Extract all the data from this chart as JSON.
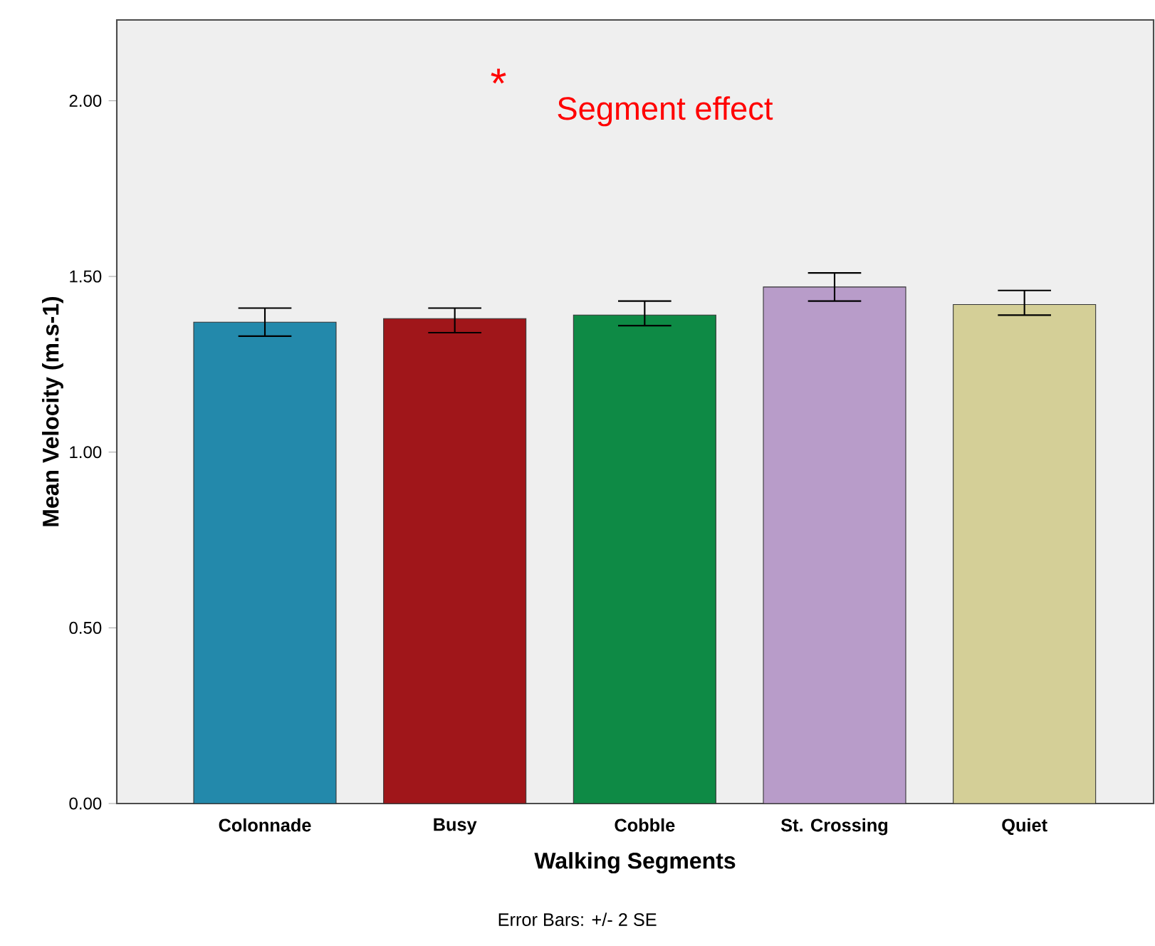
{
  "chart_data": {
    "type": "bar",
    "xlabel": "Walking Segments",
    "ylabel": "Mean Velocity (m.s-1)",
    "categories": [
      "Colonnade",
      "Busy",
      "Cobble",
      "St. Crossing",
      "Quiet"
    ],
    "values": [
      1.37,
      1.38,
      1.39,
      1.47,
      1.42
    ],
    "errors": [
      [
        1.33,
        1.41
      ],
      [
        1.34,
        1.41
      ],
      [
        1.36,
        1.43
      ],
      [
        1.43,
        1.51
      ],
      [
        1.39,
        1.46
      ]
    ],
    "colors": [
      "#2389ab",
      "#a0161a",
      "#0e8a45",
      "#b89cc9",
      "#d4cf97"
    ],
    "ylim": [
      0,
      2.23
    ],
    "yticks": [
      {
        "value": 0,
        "label": "0.00"
      },
      {
        "value": 0.5,
        "label": "0.50"
      },
      {
        "value": 1,
        "label": "1.00"
      },
      {
        "value": 1.5,
        "label": "1.50"
      },
      {
        "value": 2,
        "label": "2.00"
      }
    ],
    "grid": false,
    "annotations": [
      "*",
      "Segment effect",
      "Error Bars: +/- 2 SE"
    ]
  }
}
